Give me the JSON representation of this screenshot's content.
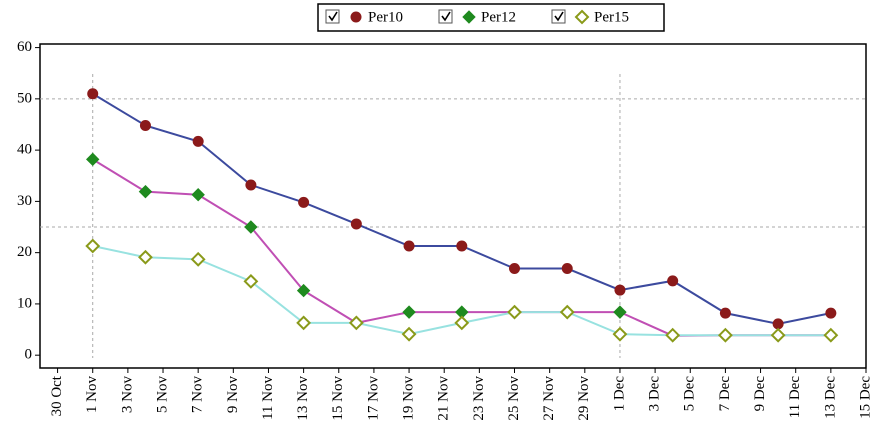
{
  "chart_data": {
    "type": "line",
    "x": [
      "1 Nov",
      "4 Nov",
      "7 Nov",
      "10 Nov",
      "13 Nov",
      "16 Nov",
      "19 Nov",
      "22 Nov",
      "25 Nov",
      "28 Nov",
      "1 Dec",
      "4 Dec",
      "7 Dec",
      "10 Dec",
      "13 Dec"
    ],
    "series": [
      {
        "name": "Per10",
        "color": "#8b1a1a",
        "line_color": "#3c4a9e",
        "marker": "circle",
        "values": [
          51,
          44.8,
          41.7,
          33.2,
          29.8,
          25.6,
          21.3,
          21.3,
          16.9,
          16.9,
          12.7,
          14.5,
          8.2,
          6.1,
          8.2
        ]
      },
      {
        "name": "Per12",
        "color": "#1f8a1f",
        "line_color": "#c04fb4",
        "marker": "diamond",
        "values": [
          38.2,
          31.9,
          31.3,
          25,
          12.6,
          6.3,
          8.4,
          8.4,
          8.4,
          8.4,
          8.4,
          3.8,
          3.9,
          3.9,
          3.9
        ]
      },
      {
        "name": "Per15",
        "color": "#8a9a1a",
        "line_color": "#98e2e0",
        "marker": "diamond-open",
        "values": [
          21.3,
          19.1,
          18.7,
          14.4,
          6.3,
          6.3,
          4.1,
          6.3,
          8.4,
          8.4,
          4.1,
          3.9,
          3.9,
          3.9,
          3.9
        ]
      }
    ],
    "xlim": [
      "29 Oct",
      "15 Dec"
    ],
    "xticks": [
      "30 Oct",
      "1 Nov",
      "3 Nov",
      "5 Nov",
      "7 Nov",
      "9 Nov",
      "11 Nov",
      "13 Nov",
      "15 Nov",
      "17 Nov",
      "19 Nov",
      "21 Nov",
      "23 Nov",
      "25 Nov",
      "27 Nov",
      "29 Nov",
      "1 Dec",
      "3 Dec",
      "5 Dec",
      "7 Dec",
      "9 Dec",
      "11 Dec",
      "13 Dec",
      "15 Dec"
    ],
    "ylim": [
      -2.5,
      60.7
    ],
    "yticks": [
      0,
      10,
      20,
      30,
      40,
      50,
      60
    ],
    "hlines": [
      50,
      25
    ],
    "vlines": [
      "1 Nov",
      "1 Dec"
    ],
    "legend": "top"
  }
}
